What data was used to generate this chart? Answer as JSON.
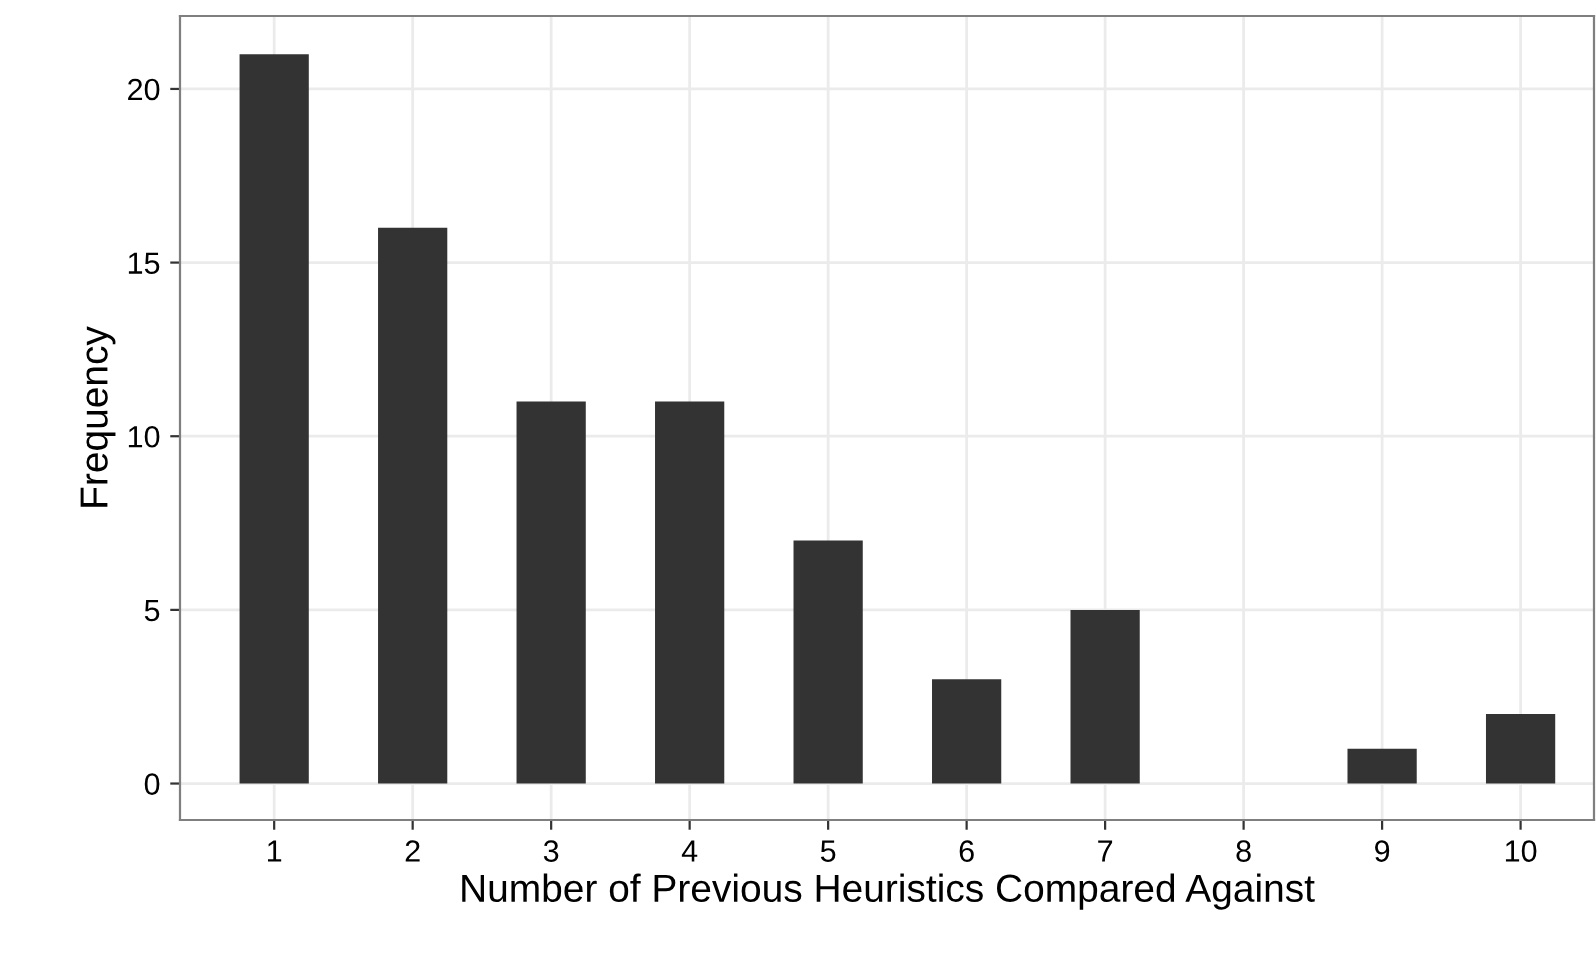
{
  "chart_data": {
    "type": "bar",
    "xlabel": "Number of Previous Heuristics Compared Against",
    "ylabel": "Frequency",
    "x": [
      1,
      2,
      3,
      4,
      5,
      6,
      7,
      8,
      9,
      10
    ],
    "values": [
      21,
      16,
      11,
      11,
      7,
      3,
      5,
      0,
      1,
      2
    ],
    "color": "#333333",
    "xlim": [
      0.32,
      10.53
    ],
    "xticks": [
      1,
      2,
      3,
      4,
      5,
      6,
      7,
      8,
      9,
      10
    ],
    "ylim": [
      -1.05,
      22.1
    ],
    "yticks": [
      0,
      5,
      10,
      15,
      20
    ],
    "grid": true
  }
}
